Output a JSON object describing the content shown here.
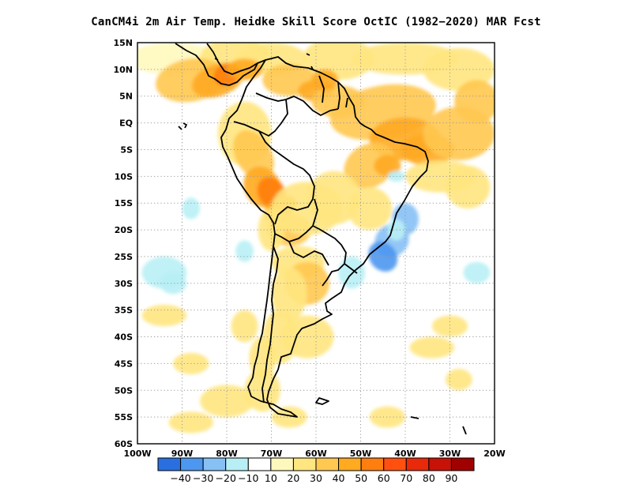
{
  "title": "CanCM4i  2m Air Temp. Heidke Skill Score OctIC (1982−2020) MAR Fcst",
  "map": {
    "region": "South America",
    "lon_range": [
      -100,
      -20
    ],
    "lat_range": [
      -60,
      15
    ],
    "lat_labels": [
      "15N",
      "10N",
      "5N",
      "EQ",
      "5S",
      "10S",
      "15S",
      "20S",
      "25S",
      "30S",
      "35S",
      "40S",
      "45S",
      "50S",
      "55S",
      "60S"
    ],
    "lon_labels": [
      "100W",
      "90W",
      "80W",
      "70W",
      "60W",
      "50W",
      "40W",
      "30W",
      "20W"
    ],
    "grid": "dotted"
  },
  "colorbar": {
    "colors": [
      "#2a6fe0",
      "#4c97f0",
      "#86c0f5",
      "#b8eff5",
      "#ffffff",
      "#fff8bc",
      "#ffe680",
      "#ffc850",
      "#ffaa20",
      "#ff7e10",
      "#ff5010",
      "#e82a0a",
      "#c81208",
      "#a00000"
    ],
    "labels": [
      "−40",
      "−30",
      "−20",
      "−10",
      "10",
      "20",
      "30",
      "40",
      "50",
      "60",
      "70",
      "80",
      "90"
    ]
  },
  "chart_data": {
    "type": "heatmap",
    "title": "CanCM4i  2m Air Temp. Heidke Skill Score OctIC (1982−2020) MAR Fcst",
    "x_range": [
      -100,
      -20
    ],
    "y_range": [
      -60,
      15
    ],
    "color_levels": [
      -40,
      -30,
      -20,
      -10,
      10,
      20,
      30,
      40,
      50,
      60,
      70,
      80,
      90
    ],
    "highlights": [
      {
        "where": "Central America / Panama",
        "value_range": [
          50,
          70
        ]
      },
      {
        "where": "Venezuela / northern South America",
        "value_range": [
          30,
          50
        ]
      },
      {
        "where": "Tropical Atlantic off NE Brazil",
        "value_range": [
          30,
          50
        ]
      },
      {
        "where": "Peruvian Andes / Bolivia",
        "value_range": [
          30,
          60
        ]
      },
      {
        "where": "Southern Brazil coast",
        "value_range": [
          -30,
          -10
        ]
      },
      {
        "where": "Pacific near 28S",
        "value_range": [
          -20,
          -10
        ]
      }
    ]
  }
}
